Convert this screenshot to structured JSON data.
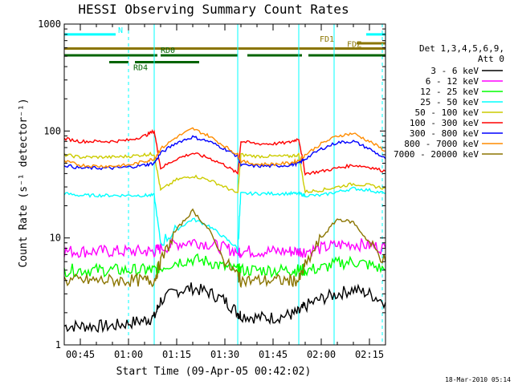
{
  "chart_data": {
    "type": "line",
    "title": "HESSI Observing Summary Count Rates",
    "xlabel": "Start Time (09-Apr-05 00:42:02)",
    "ylabel": "Count Rate (s⁻¹ detector⁻¹)",
    "yscale": "log",
    "ylim": [
      1,
      1000
    ],
    "xlim": [
      "00:40",
      "02:20"
    ],
    "x_ticks": [
      "00:45",
      "01:00",
      "01:15",
      "01:30",
      "01:45",
      "02:00",
      "02:15"
    ],
    "y_ticks": [
      "1",
      "10",
      "100",
      "1000"
    ],
    "timestamp": "18-Mar-2010 05:14",
    "legend": {
      "placement": "right",
      "header": [
        "Det 1,3,4,5,6,9,",
        "Att 0"
      ],
      "entries": [
        {
          "label": "3 - 6 keV",
          "color": "#000000"
        },
        {
          "label": "6 - 12 keV",
          "color": "#ff00ff"
        },
        {
          "label": "12 - 25 keV",
          "color": "#00ff00"
        },
        {
          "label": "25 - 50 keV",
          "color": "#00ffff"
        },
        {
          "label": "50 - 100 keV",
          "color": "#cccc00"
        },
        {
          "label": "100 - 300 keV",
          "color": "#ff0000"
        },
        {
          "label": "300 - 800 keV",
          "color": "#0000ff"
        },
        {
          "label": "800 - 7000 keV",
          "color": "#ff8c00"
        },
        {
          "label": "7000 - 20000 keV",
          "color": "#8b7500"
        }
      ]
    },
    "flag_bars": [
      {
        "label": "N",
        "color": "#00ffff",
        "y": 800,
        "intervals": [
          [
            "00:40",
            "00:56"
          ],
          [
            "02:14",
            "02:20"
          ]
        ]
      },
      {
        "label": "FD1",
        "color": "#8b7500",
        "y": 660,
        "intervals": [
          [
            "02:11",
            "02:20"
          ]
        ]
      },
      {
        "label": "FDZ",
        "color": "#8b7500",
        "y": 590,
        "intervals": [
          [
            "00:40",
            "02:20"
          ]
        ]
      },
      {
        "label": "RD0",
        "color": "#006400",
        "y": 510,
        "intervals": [
          [
            "00:40",
            "01:09"
          ],
          [
            "01:10",
            "01:34"
          ],
          [
            "01:37",
            "01:54"
          ],
          [
            "01:56",
            "02:20"
          ]
        ]
      },
      {
        "label": "RD4",
        "color": "#006400",
        "y": 440,
        "intervals": [
          [
            "00:54",
            "01:00"
          ],
          [
            "01:02",
            "01:22"
          ]
        ]
      }
    ],
    "vertical_markers": {
      "solid": [
        "00:40",
        "01:08",
        "01:34",
        "01:53",
        "02:04"
      ],
      "dashed": [
        "01:00",
        "02:19"
      ]
    },
    "time_axis": [
      "00:40",
      "00:45",
      "00:50",
      "00:55",
      "01:00",
      "01:05",
      "01:08",
      "01:10",
      "01:15",
      "01:20",
      "01:25",
      "01:30",
      "01:34",
      "01:35",
      "01:40",
      "01:45",
      "01:50",
      "01:53",
      "01:55",
      "02:00",
      "02:05",
      "02:10",
      "02:15",
      "02:20"
    ],
    "series": [
      {
        "name": "3 - 6 keV",
        "color": "#000000",
        "values": [
          1.5,
          1.5,
          1.5,
          1.5,
          1.6,
          1.7,
          1.8,
          2.6,
          3.2,
          3.4,
          3.1,
          2.6,
          2.0,
          1.9,
          1.8,
          1.8,
          1.9,
          2.0,
          2.3,
          2.7,
          3.0,
          3.3,
          3.0,
          2.5
        ]
      },
      {
        "name": "6 - 12 keV",
        "color": "#ff00ff",
        "values": [
          7.5,
          7.5,
          7.5,
          7.5,
          7.5,
          7.5,
          7.5,
          8.0,
          8.8,
          9.3,
          8.8,
          8.0,
          7.5,
          7.5,
          7.5,
          7.5,
          7.5,
          7.5,
          7.5,
          8.0,
          8.6,
          8.8,
          8.5,
          8.0
        ]
      },
      {
        "name": "12 - 25 keV",
        "color": "#00ff00",
        "values": [
          5.0,
          5.0,
          5.0,
          5.0,
          5.0,
          5.0,
          5.0,
          5.3,
          6.0,
          6.3,
          6.0,
          5.3,
          5.0,
          5.0,
          5.0,
          5.0,
          5.0,
          5.0,
          5.0,
          5.2,
          5.8,
          6.0,
          5.6,
          5.0
        ]
      },
      {
        "name": "25 - 50 keV",
        "color": "#00ffff",
        "values": [
          26,
          25,
          25,
          25,
          25,
          25,
          25,
          9,
          12,
          15,
          13,
          10,
          8,
          26,
          26,
          26,
          26,
          26,
          25,
          25,
          27,
          29,
          28,
          26
        ]
      },
      {
        "name": "50 - 100 keV",
        "color": "#cccc00",
        "values": [
          60,
          57,
          57,
          57,
          58,
          60,
          61,
          28,
          35,
          38,
          35,
          30,
          26,
          60,
          58,
          58,
          58,
          60,
          27,
          28,
          30,
          32,
          31,
          29
        ]
      },
      {
        "name": "100 - 300 keV",
        "color": "#ff0000",
        "values": [
          85,
          80,
          80,
          80,
          82,
          90,
          100,
          45,
          55,
          62,
          56,
          48,
          40,
          80,
          76,
          76,
          78,
          85,
          40,
          42,
          45,
          48,
          46,
          42
        ]
      },
      {
        "name": "300 - 800 keV",
        "color": "#0000ff",
        "values": [
          48,
          45,
          45,
          45,
          46,
          48,
          50,
          62,
          78,
          88,
          80,
          68,
          58,
          48,
          47,
          47,
          48,
          50,
          55,
          68,
          78,
          80,
          68,
          55
        ]
      },
      {
        "name": "800 - 7000 keV",
        "color": "#ff8c00",
        "values": [
          52,
          48,
          47,
          47,
          48,
          52,
          55,
          68,
          88,
          105,
          90,
          72,
          60,
          52,
          49,
          49,
          50,
          53,
          60,
          76,
          90,
          95,
          80,
          65
        ]
      },
      {
        "name": "7000 - 20000 keV",
        "color": "#8b7500",
        "values": [
          4.0,
          4.0,
          4.0,
          4.0,
          4.0,
          4.0,
          4.0,
          6.0,
          12.0,
          18.0,
          12.0,
          6.0,
          4.5,
          4.0,
          4.0,
          4.0,
          4.0,
          4.0,
          5.5,
          10.0,
          15.0,
          14.0,
          9.0,
          6.0
        ]
      }
    ]
  }
}
